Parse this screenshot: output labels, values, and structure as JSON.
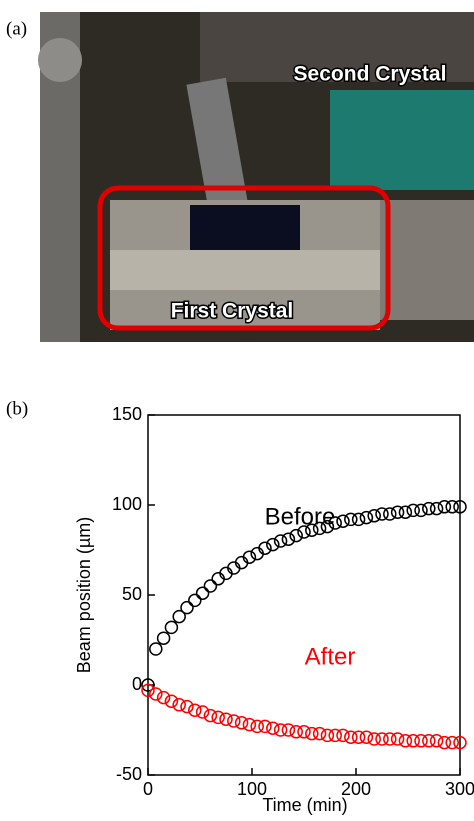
{
  "figure": {
    "panel_a": "(a)",
    "panel_b": "(b)",
    "photo_labels": [
      "Second Crystal",
      "First Crystal"
    ]
  },
  "chart_data": {
    "type": "scatter",
    "x_label": "Time (min)",
    "y_label": "Beam position (µm)",
    "x": [
      0,
      7.5,
      15,
      22.5,
      30,
      37.5,
      45,
      52.5,
      60,
      67.5,
      75,
      82.5,
      90,
      97.5,
      105,
      112.5,
      120,
      127.5,
      135,
      142.5,
      150,
      157.5,
      165,
      172.5,
      180,
      187.5,
      195,
      202.5,
      210,
      217.5,
      225,
      232.5,
      240,
      247.5,
      255,
      262.5,
      270,
      277.5,
      285,
      292.5,
      300
    ],
    "series": [
      {
        "name": "Before",
        "color": "#000000",
        "values": [
          0,
          20,
          26,
          32,
          38,
          43,
          47,
          51,
          55,
          59,
          62,
          65,
          68,
          71,
          73,
          76,
          78,
          80,
          81,
          83,
          85,
          86,
          87,
          88,
          90,
          91,
          92,
          92,
          93,
          94,
          95,
          95,
          96,
          96,
          97,
          97,
          98,
          98,
          99,
          99,
          99
        ]
      },
      {
        "name": "After",
        "color": "#ff0000",
        "values": [
          -3,
          -5,
          -7,
          -9,
          -11,
          -12,
          -14,
          -15,
          -17,
          -18,
          -19,
          -20,
          -21,
          -22,
          -23,
          -23,
          -24,
          -25,
          -25,
          -26,
          -26,
          -27,
          -27,
          -28,
          -28,
          -28,
          -29,
          -29,
          -29,
          -30,
          -30,
          -30,
          -30,
          -31,
          -31,
          -31,
          -31,
          -31,
          -32,
          -32,
          -32
        ]
      }
    ],
    "xlim": [
      0,
      300
    ],
    "ylim": [
      -50,
      150
    ],
    "xticks": [
      0,
      100,
      200,
      300
    ],
    "yticks": [
      -50,
      0,
      50,
      100,
      150
    ]
  }
}
